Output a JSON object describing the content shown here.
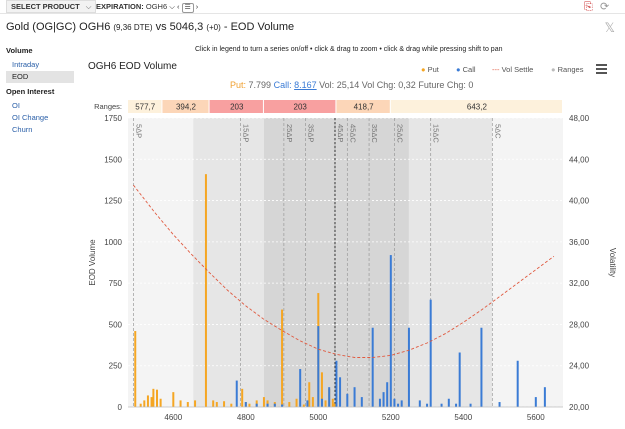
{
  "topbar": {
    "select_product": "SELECT PRODUCT",
    "expiration_label": "EXPIRATION:",
    "expiration_value": "OGH6"
  },
  "title": {
    "main": "Gold (OG|GC) OGH6",
    "dte": "(9,36 DTE)",
    "rest": "vs 5046,3",
    "chg": "(+0)",
    "suffix": "- EOD Volume"
  },
  "nav": {
    "volume_header": "Volume",
    "volume_items": [
      "Intraday",
      "EOD"
    ],
    "selected": "EOD",
    "oi_header": "Open Interest",
    "oi_items": [
      "OI",
      "OI Change",
      "Churn"
    ]
  },
  "chart": {
    "hint": "Click in legend to turn a series on/off • click & drag to zoom • click & drag while pressing shift to pan",
    "title": "OGH6 EOD Volume",
    "legend": {
      "put": "Put",
      "call": "Call",
      "vol_settle": "Vol Settle",
      "ranges": "Ranges"
    },
    "summary": {
      "put_label": "Put:",
      "put_value": "7.799",
      "call_label": "Call:",
      "call_value": "8.167",
      "vol_label": "Vol:",
      "vol_value": "25,14",
      "volchg_label": "Vol Chg:",
      "volchg_value": "0,32",
      "futchg_label": "Future Chg:",
      "futchg_value": "0"
    },
    "colors": {
      "put": "#f5a623",
      "call": "#3a7bd5",
      "vol": "#e05a40",
      "range_dark": "#c9c9c9",
      "range_light": "#e6e6e6"
    }
  },
  "chart_data": {
    "type": "bar",
    "title": "OGH6 EOD Volume",
    "ylabel": "EOD Volume",
    "y2label": "Volatility",
    "xlim": [
      4475,
      5675
    ],
    "ylim": [
      0,
      1750
    ],
    "y2lim": [
      20,
      48
    ],
    "xticks": [
      4600,
      4800,
      5000,
      5200,
      5400,
      5600
    ],
    "yticks": [
      0,
      250,
      500,
      750,
      1000,
      1250,
      1500,
      1750
    ],
    "y2ticks": [
      "20,00",
      "24,00",
      "28,00",
      "32,00",
      "36,00",
      "40,00",
      "44,00",
      "48,00"
    ],
    "ranges_label": "Ranges:",
    "ranges": [
      {
        "label": "577,7",
        "from": 4475,
        "to": 4570,
        "color": "#fdf1dc"
      },
      {
        "label": "394,2",
        "from": 4570,
        "to": 4700,
        "color": "#fcd6b8"
      },
      {
        "label": "203",
        "from": 4700,
        "to": 4850,
        "color": "#f8a0a0"
      },
      {
        "label": "203",
        "from": 4850,
        "to": 5050,
        "color": "#f8a0a0"
      },
      {
        "label": "418,7",
        "from": 5050,
        "to": 5200,
        "color": "#fcd6b8"
      },
      {
        "label": "643,2",
        "from": 5200,
        "to": 5675,
        "color": "#fdf1dc"
      }
    ],
    "bands": [
      {
        "from": 4475,
        "to": 4655,
        "shade": "light"
      },
      {
        "from": 4655,
        "to": 4850,
        "shade": "mid"
      },
      {
        "from": 4850,
        "to": 5050,
        "shade": "dark"
      },
      {
        "from": 5050,
        "to": 5250,
        "shade": "dark"
      },
      {
        "from": 5250,
        "to": 5480,
        "shade": "mid"
      },
      {
        "from": 5480,
        "to": 5675,
        "shade": "light"
      }
    ],
    "vlines": [
      {
        "x": 4490,
        "label": "5ΔP"
      },
      {
        "x": 4785,
        "label": "15ΔP"
      },
      {
        "x": 4905,
        "label": "25ΔP"
      },
      {
        "x": 4965,
        "label": "35ΔP"
      },
      {
        "x": 5046,
        "label": "45ΔP"
      },
      {
        "x": 5080,
        "label": "45ΔC"
      },
      {
        "x": 5140,
        "label": "35ΔC"
      },
      {
        "x": 5210,
        "label": "25ΔC"
      },
      {
        "x": 5310,
        "label": "15ΔC"
      },
      {
        "x": 5480,
        "label": "5ΔC"
      }
    ],
    "atm": 5046,
    "series": [
      {
        "name": "Put",
        "points": [
          [
            4495,
            460
          ],
          [
            4510,
            20
          ],
          [
            4520,
            40
          ],
          [
            4530,
            70
          ],
          [
            4540,
            60
          ],
          [
            4545,
            110
          ],
          [
            4555,
            105
          ],
          [
            4565,
            50
          ],
          [
            4600,
            90
          ],
          [
            4620,
            40
          ],
          [
            4640,
            30
          ],
          [
            4660,
            40
          ],
          [
            4690,
            1410
          ],
          [
            4710,
            40
          ],
          [
            4720,
            30
          ],
          [
            4740,
            35
          ],
          [
            4760,
            20
          ],
          [
            4790,
            110
          ],
          [
            4800,
            30
          ],
          [
            4810,
            20
          ],
          [
            4830,
            40
          ],
          [
            4850,
            60
          ],
          [
            4860,
            40
          ],
          [
            4880,
            30
          ],
          [
            4900,
            590
          ],
          [
            4920,
            30
          ],
          [
            4940,
            50
          ],
          [
            4960,
            15
          ],
          [
            4975,
            150
          ],
          [
            4985,
            60
          ],
          [
            5000,
            690
          ],
          [
            5010,
            210
          ],
          [
            5020,
            40
          ],
          [
            5030,
            110
          ],
          [
            5040,
            50
          ],
          [
            5045,
            20
          ]
        ]
      },
      {
        "name": "Call",
        "points": [
          [
            4775,
            160
          ],
          [
            4800,
            30
          ],
          [
            4830,
            20
          ],
          [
            4860,
            20
          ],
          [
            4880,
            20
          ],
          [
            4900,
            15
          ],
          [
            4950,
            230
          ],
          [
            4970,
            40
          ],
          [
            5000,
            490
          ],
          [
            5010,
            50
          ],
          [
            5030,
            120
          ],
          [
            5050,
            280
          ],
          [
            5060,
            180
          ],
          [
            5080,
            80
          ],
          [
            5100,
            120
          ],
          [
            5120,
            60
          ],
          [
            5150,
            480
          ],
          [
            5170,
            50
          ],
          [
            5180,
            90
          ],
          [
            5190,
            150
          ],
          [
            5200,
            920
          ],
          [
            5210,
            50
          ],
          [
            5220,
            20
          ],
          [
            5230,
            40
          ],
          [
            5250,
            480
          ],
          [
            5280,
            40
          ],
          [
            5300,
            20
          ],
          [
            5310,
            650
          ],
          [
            5340,
            20
          ],
          [
            5360,
            50
          ],
          [
            5380,
            20
          ],
          [
            5390,
            330
          ],
          [
            5420,
            20
          ],
          [
            5450,
            480
          ],
          [
            5500,
            30
          ],
          [
            5550,
            280
          ],
          [
            5600,
            60
          ],
          [
            5625,
            120
          ]
        ]
      }
    ],
    "vol_settle": [
      [
        4490,
        41.5
      ],
      [
        4550,
        38.8
      ],
      [
        4600,
        36.7
      ],
      [
        4650,
        34.8
      ],
      [
        4700,
        33.0
      ],
      [
        4750,
        31.3
      ],
      [
        4800,
        29.8
      ],
      [
        4850,
        28.5
      ],
      [
        4900,
        27.4
      ],
      [
        4950,
        26.4
      ],
      [
        5000,
        25.6
      ],
      [
        5050,
        25.1
      ],
      [
        5100,
        24.8
      ],
      [
        5150,
        24.8
      ],
      [
        5200,
        25.0
      ],
      [
        5250,
        25.5
      ],
      [
        5300,
        26.2
      ],
      [
        5350,
        27.1
      ],
      [
        5400,
        28.2
      ],
      [
        5450,
        29.4
      ],
      [
        5500,
        30.7
      ],
      [
        5550,
        32.0
      ],
      [
        5600,
        33.3
      ],
      [
        5650,
        34.6
      ]
    ]
  }
}
